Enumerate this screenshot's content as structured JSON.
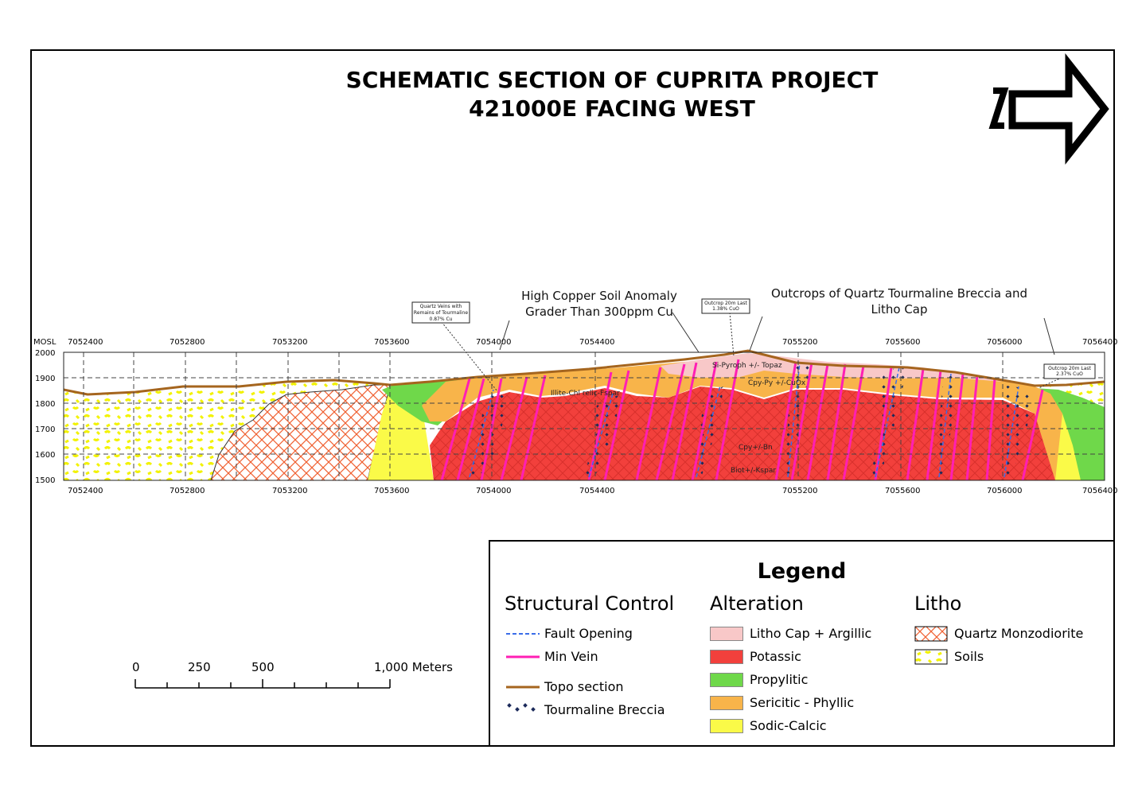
{
  "title": {
    "line1": "SCHEMATIC SECTION OF CUPRITA PROJECT",
    "line2": "421000E FACING WEST"
  },
  "north_arrow": {
    "letter": "N"
  },
  "section": {
    "elevation_unit": "MOSL",
    "elevation_ticks": [
      "2000",
      "1900",
      "1800",
      "1700",
      "1600",
      "1500"
    ],
    "northing_ticks": [
      "7052400",
      "7052800",
      "7053200",
      "7053600",
      "7054000",
      "7054400",
      "7055200",
      "7055600",
      "7056000",
      "7056400"
    ],
    "zone_labels": {
      "illite": "Illite-Chl relic-Fspar",
      "si_pyroph": "Si-Pyroph +/- Topaz",
      "cpy_py": "Cpy-Py +/-CuOx",
      "cpy_bn": "Cpy+/-Bn",
      "biot": "Biot+/-Kspar"
    }
  },
  "annotations": {
    "soil_anomaly": "High Copper Soil Anomaly Grader Than 300ppm Cu",
    "outcrops": "Outcrops of Quartz Tourmaline Breccia and Litho Cap",
    "box_left": "Quartz Veins with Remains of Tourmaline 0.87% Cu",
    "box_mid": "Outcrop 20m Last 1.38% CuO",
    "box_right": "Outcrop 20m Last 2.37% CuO"
  },
  "scale_bar": {
    "labels": [
      "0",
      "250",
      "500",
      "1,000 Meters"
    ]
  },
  "legend": {
    "title": "Legend",
    "structural": {
      "heading": "Structural Control",
      "items": [
        "Fault Opening",
        "Min Vein",
        "Topo section",
        "Tourmaline Breccia"
      ]
    },
    "alteration": {
      "heading": "Alteration",
      "items": [
        {
          "label": "Litho Cap + Argillic",
          "color": "#f8c8c8"
        },
        {
          "label": "Potassic",
          "color": "#f2403c"
        },
        {
          "label": "Propylitic",
          "color": "#6fd84a"
        },
        {
          "label": "Sericitic - Phyllic",
          "color": "#f8b44a"
        },
        {
          "label": "Sodic-Calcic",
          "color": "#fafa48"
        }
      ]
    },
    "litho": {
      "heading": "Litho",
      "items": [
        "Quartz Monzodiorite",
        "Soils"
      ]
    }
  },
  "colors": {
    "vein": "#ff1fb4",
    "fault": "#3a6de8",
    "topo": "#a5651e",
    "quartz_monzodiorite": "#f06030"
  }
}
